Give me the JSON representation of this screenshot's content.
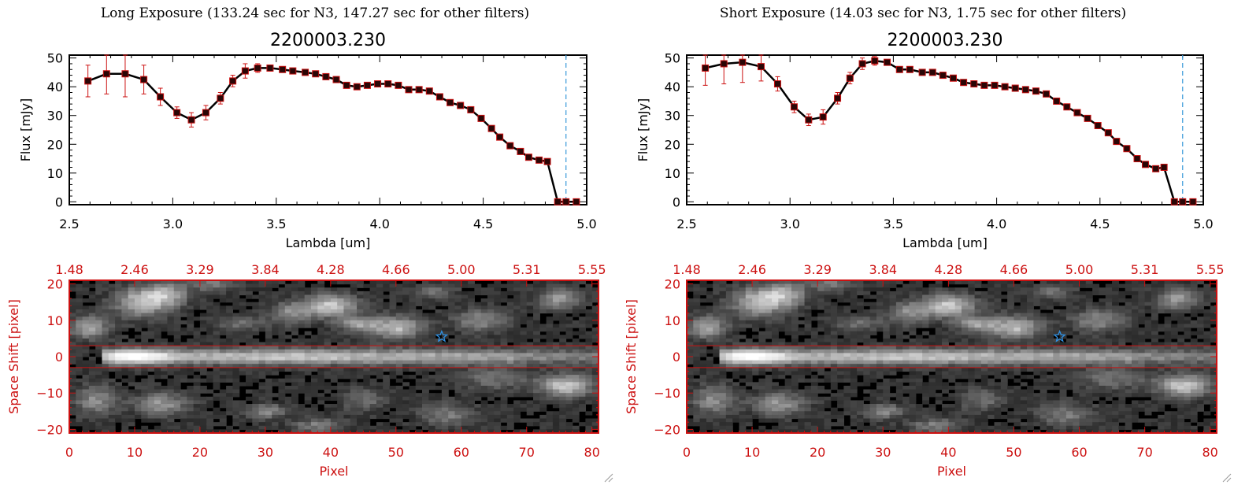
{
  "chart_data": [
    {
      "type": "line",
      "panel": "left",
      "suptitle": "Long Exposure (133.24 sec for N3, 147.27 sec for other filters)",
      "title": "2200003.230",
      "xlabel": "Lambda [um]",
      "ylabel": "Flux [mJy]",
      "xlim": [
        2.5,
        5.0
      ],
      "ylim": [
        -1,
        51
      ],
      "xticks": [
        2.5,
        3.0,
        3.5,
        4.0,
        4.5,
        5.0
      ],
      "xtick_labels": [
        "2.5",
        "3.0",
        "3.5",
        "4.0",
        "4.5",
        "5.0"
      ],
      "yticks": [
        0,
        10,
        20,
        30,
        40,
        50
      ],
      "ytick_labels": [
        "0",
        "10",
        "20",
        "30",
        "40",
        "50"
      ],
      "vline_x": 4.9,
      "x": [
        2.59,
        2.68,
        2.77,
        2.86,
        2.94,
        3.02,
        3.09,
        3.16,
        3.23,
        3.29,
        3.35,
        3.41,
        3.47,
        3.53,
        3.58,
        3.64,
        3.69,
        3.74,
        3.79,
        3.84,
        3.89,
        3.94,
        3.99,
        4.04,
        4.09,
        4.14,
        4.19,
        4.24,
        4.29,
        4.34,
        4.39,
        4.44,
        4.49,
        4.54,
        4.58,
        4.63,
        4.68,
        4.72,
        4.77,
        4.81,
        4.86,
        4.9,
        4.95
      ],
      "y": [
        42,
        44.5,
        44.5,
        42.5,
        36.5,
        31,
        28.5,
        31,
        36,
        42,
        45.5,
        46.5,
        46.5,
        46,
        45.5,
        45,
        44.5,
        43.5,
        42.5,
        40.5,
        40,
        40.5,
        41,
        41,
        40.5,
        39,
        39,
        38.5,
        36.5,
        34.5,
        33.5,
        32,
        29,
        25.5,
        22.5,
        19.5,
        17.5,
        15.5,
        14.5,
        14,
        0,
        0,
        0
      ],
      "err": [
        5.5,
        7,
        8,
        5,
        3,
        2,
        2.5,
        2.5,
        2,
        2,
        2.5,
        1.5,
        1,
        1,
        1,
        1,
        1,
        1,
        1,
        1,
        1,
        1,
        1,
        1,
        1,
        1,
        1,
        1,
        1,
        1,
        1,
        1,
        1,
        1,
        1,
        1,
        1,
        1,
        1,
        1,
        0,
        0,
        0
      ],
      "image": {
        "top_ticks": [
          "1.48",
          "2.46",
          "3.29",
          "3.84",
          "4.28",
          "4.66",
          "5.00",
          "5.31",
          "5.55"
        ],
        "xlabel": "Pixel",
        "ylabel": "Space Shift [pixel]",
        "xticks": [
          0,
          10,
          20,
          30,
          40,
          50,
          60,
          70,
          80
        ],
        "xtick_labels": [
          "0",
          "10",
          "20",
          "30",
          "40",
          "50",
          "60",
          "70",
          "80"
        ],
        "yticks": [
          20,
          10,
          0,
          -10,
          -20
        ],
        "ytick_labels": [
          "20",
          "10",
          "0",
          "−10",
          "−20"
        ],
        "xlim": [
          0,
          81
        ],
        "ylim": [
          -21,
          21
        ],
        "star": [
          57,
          5.5
        ],
        "band": [
          -3,
          3
        ]
      }
    },
    {
      "type": "line",
      "panel": "right",
      "suptitle": "Short Exposure (14.03 sec for N3, 1.75 sec for other filters)",
      "title": "2200003.230",
      "xlabel": "Lambda [um]",
      "ylabel": "Flux [mJy]",
      "xlim": [
        2.5,
        5.0
      ],
      "ylim": [
        -1,
        51
      ],
      "xticks": [
        2.5,
        3.0,
        3.5,
        4.0,
        4.5,
        5.0
      ],
      "xtick_labels": [
        "2.5",
        "3.0",
        "3.5",
        "4.0",
        "4.5",
        "5.0"
      ],
      "yticks": [
        0,
        10,
        20,
        30,
        40,
        50
      ],
      "ytick_labels": [
        "0",
        "10",
        "20",
        "30",
        "40",
        "50"
      ],
      "vline_x": 4.9,
      "x": [
        2.59,
        2.68,
        2.77,
        2.86,
        2.94,
        3.02,
        3.09,
        3.16,
        3.23,
        3.29,
        3.35,
        3.41,
        3.47,
        3.53,
        3.58,
        3.64,
        3.69,
        3.74,
        3.79,
        3.84,
        3.89,
        3.94,
        3.99,
        4.04,
        4.09,
        4.14,
        4.19,
        4.24,
        4.29,
        4.34,
        4.39,
        4.44,
        4.49,
        4.54,
        4.58,
        4.63,
        4.68,
        4.72,
        4.77,
        4.81,
        4.86,
        4.9,
        4.95
      ],
      "y": [
        46.5,
        48,
        48.5,
        47,
        41,
        33,
        28.5,
        29.5,
        36,
        43,
        48,
        49,
        48.5,
        46,
        46,
        45,
        45,
        44,
        43,
        41.5,
        41,
        40.5,
        40.5,
        40,
        39.5,
        39,
        38.5,
        37.5,
        35,
        33,
        31,
        29,
        26.5,
        24,
        21,
        18.5,
        15,
        13,
        11.5,
        12,
        0,
        0,
        0
      ],
      "err": [
        6,
        7,
        7,
        5,
        2.5,
        2,
        2,
        2.5,
        2,
        2,
        2,
        1.5,
        1,
        1,
        1,
        1,
        1,
        1,
        1,
        1,
        1,
        1,
        1,
        1,
        1,
        1,
        1,
        1,
        1,
        1,
        1,
        1,
        1,
        1,
        1,
        1,
        1,
        1,
        1,
        1,
        0,
        0,
        0
      ],
      "image": {
        "top_ticks": [
          "1.48",
          "2.46",
          "3.29",
          "3.84",
          "4.28",
          "4.66",
          "5.00",
          "5.31",
          "5.55"
        ],
        "xlabel": "Pixel",
        "ylabel": "Space Shift [pixel]",
        "xticks": [
          0,
          10,
          20,
          30,
          40,
          50,
          60,
          70,
          80
        ],
        "xtick_labels": [
          "0",
          "10",
          "20",
          "30",
          "40",
          "50",
          "60",
          "70",
          "80"
        ],
        "yticks": [
          20,
          10,
          0,
          -10,
          -20
        ],
        "ytick_labels": [
          "20",
          "10",
          "0",
          "−10",
          "−20"
        ],
        "xlim": [
          0,
          81
        ],
        "ylim": [
          -21,
          21
        ],
        "star": [
          57,
          5.5
        ],
        "band": [
          -3,
          3
        ]
      }
    }
  ]
}
